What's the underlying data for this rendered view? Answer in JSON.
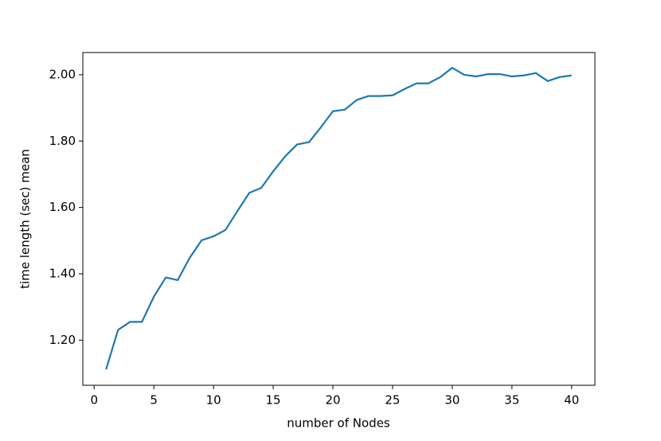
{
  "chart_data": {
    "type": "line",
    "xlabel": "number of Nodes",
    "ylabel": "time length (sec) mean",
    "x": [
      1,
      2,
      3,
      4,
      5,
      6,
      7,
      8,
      9,
      10,
      11,
      12,
      13,
      14,
      15,
      16,
      17,
      18,
      19,
      20,
      21,
      22,
      23,
      24,
      25,
      26,
      27,
      28,
      29,
      30,
      31,
      32,
      33,
      34,
      35,
      36,
      37,
      38,
      39,
      40
    ],
    "series": [
      {
        "color": "#1f77b4",
        "values": [
          1.112,
          1.231,
          1.255,
          1.255,
          1.331,
          1.389,
          1.381,
          1.448,
          1.501,
          1.513,
          1.532,
          1.589,
          1.644,
          1.659,
          1.709,
          1.754,
          1.79,
          1.797,
          1.842,
          1.89,
          1.895,
          1.924,
          1.936,
          1.936,
          1.938,
          1.957,
          1.974,
          1.974,
          1.993,
          2.021,
          2.0,
          1.995,
          2.002,
          2.002,
          1.995,
          1.998,
          2.005,
          1.981,
          1.993,
          1.998
        ]
      }
    ],
    "xlim": [
      -0.95,
      41.95
    ],
    "ylim": [
      1.064,
      2.067
    ],
    "xticks": [
      0,
      5,
      10,
      15,
      20,
      25,
      30,
      35,
      40
    ],
    "yticks": [
      {
        "value": 1.2,
        "label": "1.20"
      },
      {
        "value": 1.4,
        "label": "1.40"
      },
      {
        "value": 1.6,
        "label": "1.60"
      },
      {
        "value": 1.8,
        "label": "1.80"
      },
      {
        "value": 2.0,
        "label": "2.00"
      }
    ]
  }
}
